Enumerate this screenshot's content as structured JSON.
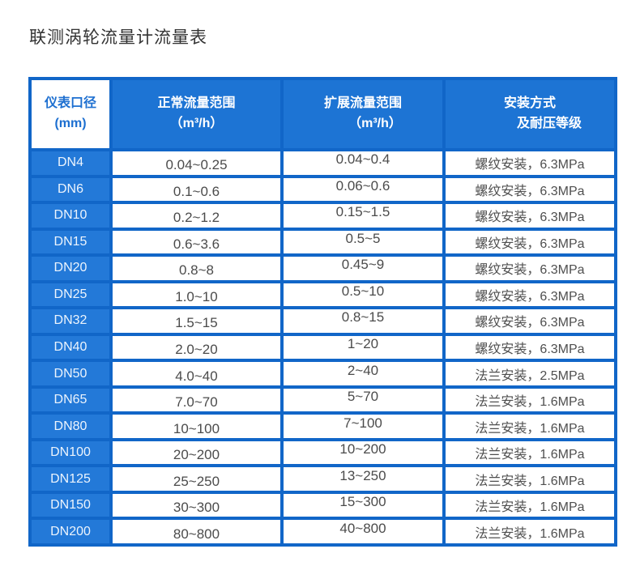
{
  "page": {
    "title": "联测涡轮流量计流量表"
  },
  "colors": {
    "grid_blue": "#1166c8",
    "header_blue": "#1d74d4",
    "dn_cell_blue": "#2379d8",
    "header_text": "#ffffff",
    "size_header_text": "#1d6fd0",
    "body_text": "#4b4b4b"
  },
  "table": {
    "columns": [
      {
        "line1": "仪表口径",
        "line2": "(mm)"
      },
      {
        "line1": "正常流量范围",
        "line2": "（m³/h）"
      },
      {
        "line1": "扩展流量范围",
        "line2": "（m³/h）"
      },
      {
        "line1": "安装方式",
        "line2": "及耐压等级"
      }
    ],
    "rows": [
      {
        "dn": "DN4",
        "normal": "0.04~0.25",
        "extended": "0.04~0.4",
        "install": "螺纹安装，6.3MPa"
      },
      {
        "dn": "DN6",
        "normal": "0.1~0.6",
        "extended": "0.06~0.6",
        "install": "螺纹安装，6.3MPa"
      },
      {
        "dn": "DN10",
        "normal": "0.2~1.2",
        "extended": "0.15~1.5",
        "install": "螺纹安装，6.3MPa"
      },
      {
        "dn": "DN15",
        "normal": "0.6~3.6",
        "extended": "0.5~5",
        "install": "螺纹安装，6.3MPa"
      },
      {
        "dn": "DN20",
        "normal": "0.8~8",
        "extended": "0.45~9",
        "install": "螺纹安装，6.3MPa"
      },
      {
        "dn": "DN25",
        "normal": "1.0~10",
        "extended": "0.5~10",
        "install": "螺纹安装，6.3MPa"
      },
      {
        "dn": "DN32",
        "normal": "1.5~15",
        "extended": "0.8~15",
        "install": "螺纹安装，6.3MPa"
      },
      {
        "dn": "DN40",
        "normal": "2.0~20",
        "extended": "1~20",
        "install": "螺纹安装，6.3MPa"
      },
      {
        "dn": "DN50",
        "normal": "4.0~40",
        "extended": "2~40",
        "install": "法兰安装，2.5MPa"
      },
      {
        "dn": "DN65",
        "normal": "7.0~70",
        "extended": "5~70",
        "install": "法兰安装，1.6MPa"
      },
      {
        "dn": "DN80",
        "normal": "10~100",
        "extended": "7~100",
        "install": "法兰安装，1.6MPa"
      },
      {
        "dn": "DN100",
        "normal": "20~200",
        "extended": "10~200",
        "install": "法兰安装，1.6MPa"
      },
      {
        "dn": "DN125",
        "normal": "25~250",
        "extended": "13~250",
        "install": "法兰安装，1.6MPa"
      },
      {
        "dn": "DN150",
        "normal": "30~300",
        "extended": "15~300",
        "install": "法兰安装，1.6MPa"
      },
      {
        "dn": "DN200",
        "normal": "80~800",
        "extended": "40~800",
        "install": "法兰安装，1.6MPa"
      }
    ]
  }
}
